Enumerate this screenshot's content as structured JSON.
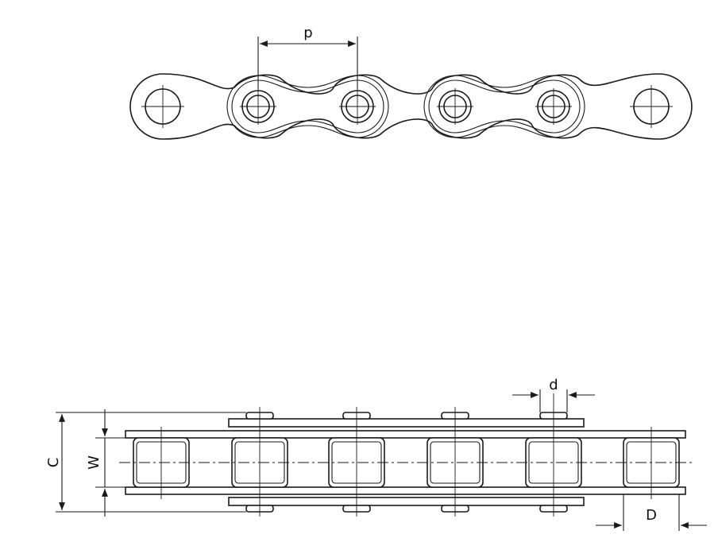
{
  "diagram": {
    "top_view": {
      "pitch_label": "p"
    },
    "side_view": {
      "label_C": "C",
      "label_W": "W",
      "label_d": "d",
      "label_D": "D"
    }
  },
  "colors": {
    "line": "#1a1a1a",
    "background": "#ffffff"
  }
}
